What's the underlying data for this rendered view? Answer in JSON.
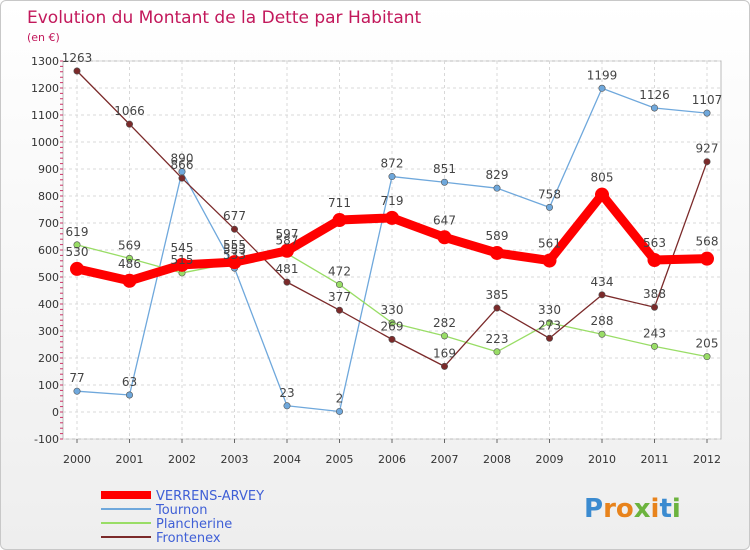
{
  "title": "Evolution du Montant de la Dette par Habitant",
  "subtitle": "(en €)",
  "brand": {
    "text": "Proxiti",
    "letters": [
      "P",
      "r",
      "o",
      "x",
      "i",
      "t",
      "i"
    ],
    "colors": [
      "#3b8bd0",
      "#e8831c",
      "#e8831c",
      "#6cb33e",
      "#e8831c",
      "#3b8bd0",
      "#6cb33e"
    ]
  },
  "chart_data": {
    "type": "line",
    "title": "Evolution du Montant de la Dette par Habitant",
    "ylabel": "(en €)",
    "x": [
      "2000",
      "2001",
      "2002",
      "2003",
      "2004",
      "2005",
      "2006",
      "2007",
      "2008",
      "2009",
      "2010",
      "2011",
      "2012"
    ],
    "ylim": [
      -100,
      1300
    ],
    "yticks": [
      "-100",
      "0",
      "100",
      "200",
      "300",
      "400",
      "500",
      "600",
      "700",
      "800",
      "900",
      "1000",
      "1100",
      "1200",
      "1300"
    ],
    "grid": true,
    "legend_position": "bottom-left",
    "series": [
      {
        "name": "VERRENS-ARVEY",
        "color": "#ff0000",
        "values": [
          530,
          486,
          545,
          555,
          597,
          711,
          719,
          647,
          589,
          561,
          805,
          563,
          568
        ],
        "labels": [
          "530",
          "486",
          "545",
          "555",
          "597",
          "711",
          "719",
          "647",
          "589",
          "561",
          "805",
          "563",
          "568"
        ]
      },
      {
        "name": "Tournon",
        "color": "#6fa8dc",
        "values": [
          77,
          63,
          890,
          533,
          23,
          2,
          872,
          851,
          829,
          758,
          1199,
          1126,
          1107
        ],
        "labels": [
          "77",
          "63",
          "890",
          "533",
          "23",
          "2",
          "872",
          "851",
          "829",
          "758",
          "1199",
          "1126",
          "1107"
        ]
      },
      {
        "name": "Plancherine",
        "color": "#99dd66",
        "values": [
          619,
          569,
          515,
          553,
          587,
          472,
          330,
          282,
          223,
          330,
          288,
          243,
          205
        ],
        "labels": [
          "619",
          "569",
          "515",
          "553",
          "587",
          "472",
          "330",
          "282",
          "223",
          "330",
          "288",
          "243",
          "205"
        ]
      },
      {
        "name": "Frontenex",
        "color": "#7b2a2a",
        "values": [
          1263,
          1066,
          866,
          677,
          481,
          377,
          269,
          169,
          385,
          273,
          434,
          388,
          927
        ],
        "labels": [
          "1263",
          "1066",
          "866",
          "677",
          "481",
          "377",
          "269",
          "169",
          "385",
          "273",
          "434",
          "388",
          "927"
        ]
      }
    ]
  }
}
